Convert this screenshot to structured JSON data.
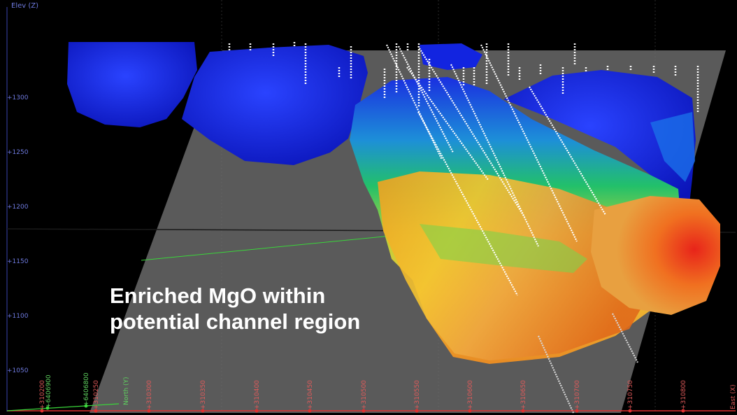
{
  "viewport": {
    "z_axis_title": "Elev (Z)",
    "z_ticks": [
      "+1300",
      "+1250",
      "+1200",
      "+1150",
      "+1100",
      "+1050"
    ],
    "east_ticks": [
      "+310200",
      "+310250",
      "+310300",
      "+310350",
      "+310400",
      "+310450",
      "+310500",
      "+310550",
      "+310600",
      "+310650",
      "+310700",
      "+310750",
      "+310800"
    ],
    "east_axis_title": "East (X)",
    "north_ticks": [
      "+6406900",
      "+6406800"
    ],
    "north_axis_title": "North (Y)",
    "annotation_line1": "Enriched MgO within",
    "annotation_line2": "potential channel region"
  },
  "colors": {
    "background": "#000000",
    "z_axis": "#6f7be0",
    "east_axis": "#e05a5a",
    "north_axis": "#5fd35f",
    "section_plane": "#6e6e6e",
    "mgo_low": "#0a1fd6",
    "mgo_high": "#e8301a",
    "drillholes": "#ffffff"
  }
}
